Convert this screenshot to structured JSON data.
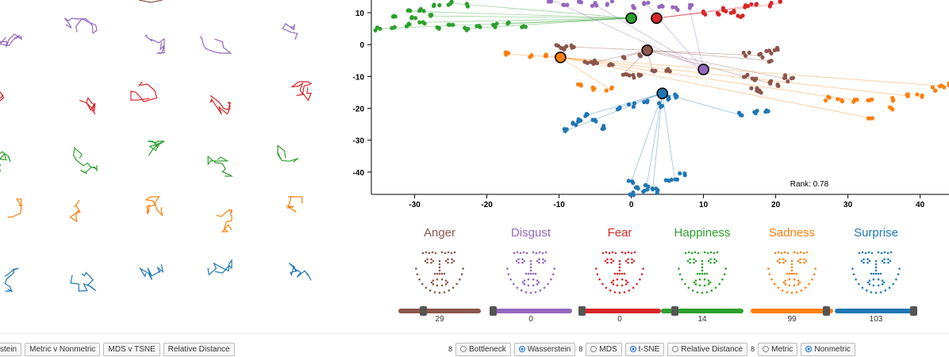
{
  "colors": {
    "anger": "#8c564b",
    "disgust": "#9467bd",
    "fear": "#d62728",
    "happiness": "#2ca02c",
    "sadness": "#ff7f0e",
    "surprise": "#1f77b4"
  },
  "emotions": [
    {
      "key": "anger",
      "label": "Anger",
      "value": "29",
      "slider": 0.28
    },
    {
      "key": "disgust",
      "label": "Disgust",
      "value": "0",
      "slider": 0.0
    },
    {
      "key": "fear",
      "label": "Fear",
      "value": "0",
      "slider": 0.0
    },
    {
      "key": "happiness",
      "label": "Happiness",
      "value": "14",
      "slider": 0.14
    },
    {
      "key": "sadness",
      "label": "Sadness",
      "value": "99",
      "slider": 0.96
    },
    {
      "key": "surprise",
      "label": "Surprise",
      "value": "103",
      "slider": 1.0
    }
  ],
  "left_buttons": [
    "stein",
    "Metric v Nonmetric",
    "MDS v TSNE",
    "Relative Distance"
  ],
  "right_controls": {
    "group1": {
      "sep": "8",
      "opts": [
        {
          "label": "Bottleneck",
          "on": false
        },
        {
          "label": "Wasserstein",
          "on": true
        }
      ]
    },
    "group2": {
      "sep": "8",
      "opts": [
        {
          "label": "MDS",
          "on": false
        },
        {
          "label": "t-SNE",
          "on": true
        },
        {
          "label": "Relative Distance",
          "on": false
        }
      ]
    },
    "group3": {
      "sep": "8",
      "opts": [
        {
          "label": "Metric",
          "on": false
        },
        {
          "label": "Nonmetric",
          "on": true
        }
      ]
    }
  },
  "chart_data": {
    "type": "scatter",
    "annotation": "Rank: 0.78",
    "xticks": [
      "-30",
      "-20",
      "-10",
      "0",
      "10",
      "20",
      "30",
      "40"
    ],
    "yticks": [
      "10",
      "0",
      "-10",
      "-20",
      "-30",
      "-40"
    ],
    "xlim": [
      -36,
      44
    ],
    "ylim": [
      -47,
      14
    ],
    "centroids": [
      {
        "series": "happiness",
        "x": 0,
        "y": 8.3
      },
      {
        "series": "fear",
        "x": 3.5,
        "y": 8.3
      },
      {
        "series": "anger",
        "x": 2.2,
        "y": -1.8
      },
      {
        "series": "sadness",
        "x": -9.8,
        "y": -4
      },
      {
        "series": "disgust",
        "x": 10,
        "y": -7.8
      },
      {
        "series": "surprise",
        "x": 4.3,
        "y": -15.3
      }
    ],
    "clusters": [
      {
        "series": "happiness",
        "pts": [
          [
            -35,
            5
          ],
          [
            -33,
            5.5
          ],
          [
            -31,
            6
          ],
          [
            -29,
            7
          ],
          [
            -27,
            5.5
          ],
          [
            -25,
            6
          ],
          [
            -23,
            5
          ],
          [
            -21,
            5.5
          ],
          [
            -19,
            6
          ],
          [
            -17,
            6.5
          ],
          [
            -15,
            5.5
          ],
          [
            -33,
            9
          ],
          [
            -31,
            10.5
          ],
          [
            -29,
            11
          ],
          [
            -27,
            12
          ],
          [
            -25,
            13
          ],
          [
            -23,
            12.5
          ],
          [
            -30,
            8
          ],
          [
            -28,
            9
          ]
        ]
      },
      {
        "series": "disgust",
        "pts": [
          [
            -11,
            14
          ],
          [
            -9,
            13
          ],
          [
            -7,
            13.5
          ],
          [
            -5,
            12.5
          ],
          [
            -3,
            13
          ],
          [
            0,
            12
          ],
          [
            2,
            13
          ],
          [
            4,
            12
          ],
          [
            6,
            11.5
          ],
          [
            8,
            12
          ]
        ]
      },
      {
        "series": "fear",
        "pts": [
          [
            10,
            10
          ],
          [
            12,
            9.5
          ],
          [
            14,
            10
          ],
          [
            16,
            12
          ],
          [
            17,
            13
          ],
          [
            19,
            12.5
          ],
          [
            21,
            13
          ],
          [
            13,
            11
          ],
          [
            15,
            9
          ]
        ]
      },
      {
        "series": "anger",
        "pts": [
          [
            -10,
            -0.5
          ],
          [
            -9,
            -1
          ],
          [
            -8,
            -0.8
          ],
          [
            -6,
            -6
          ],
          [
            -5,
            -5.5
          ],
          [
            -3,
            -6
          ],
          [
            -1,
            -4
          ],
          [
            1,
            -3
          ],
          [
            2,
            -2
          ],
          [
            -1,
            -9
          ],
          [
            0,
            -10
          ],
          [
            1,
            -9.5
          ],
          [
            3,
            -8.5
          ],
          [
            5,
            -8
          ],
          [
            16,
            -3
          ],
          [
            18,
            -3.5
          ],
          [
            19,
            -2.5
          ],
          [
            20,
            -1.5
          ],
          [
            19,
            -5
          ],
          [
            16,
            -10
          ],
          [
            17,
            -11
          ],
          [
            19,
            -12
          ],
          [
            20,
            -13
          ],
          [
            21,
            -10
          ],
          [
            22,
            -11
          ],
          [
            17,
            -14
          ],
          [
            18,
            -15
          ]
        ]
      },
      {
        "series": "sadness",
        "pts": [
          [
            -17,
            -3
          ],
          [
            -14,
            -3.5
          ],
          [
            -12,
            -3
          ],
          [
            -10,
            -3.5
          ],
          [
            -7,
            -13
          ],
          [
            -5,
            -14
          ],
          [
            -3,
            -14
          ],
          [
            27,
            -17
          ],
          [
            29,
            -17.5
          ],
          [
            31,
            -17.5
          ],
          [
            33,
            -17
          ],
          [
            36,
            -17
          ],
          [
            38,
            -16
          ],
          [
            40,
            -16
          ],
          [
            42,
            -14
          ],
          [
            43,
            -13
          ],
          [
            44,
            -12.5
          ],
          [
            36,
            -20
          ],
          [
            33,
            -23
          ]
        ]
      },
      {
        "series": "surprise",
        "pts": [
          [
            -9,
            -27
          ],
          [
            -8,
            -25
          ],
          [
            -7,
            -24
          ],
          [
            -6,
            -22
          ],
          [
            -5,
            -24
          ],
          [
            -4,
            -26
          ],
          [
            -2,
            -20
          ],
          [
            0,
            -19
          ],
          [
            2,
            -18
          ],
          [
            4,
            -19
          ],
          [
            5,
            -17
          ],
          [
            6,
            -16
          ],
          [
            15,
            -22
          ],
          [
            17,
            -21
          ],
          [
            19,
            -21
          ],
          [
            0,
            -43
          ],
          [
            1,
            -45
          ],
          [
            2,
            -44
          ],
          [
            3,
            -45
          ],
          [
            4,
            -46
          ],
          [
            5,
            -43
          ],
          [
            6,
            -42
          ],
          [
            7,
            -41
          ],
          [
            0,
            -47
          ],
          [
            2,
            -46
          ]
        ]
      }
    ]
  }
}
